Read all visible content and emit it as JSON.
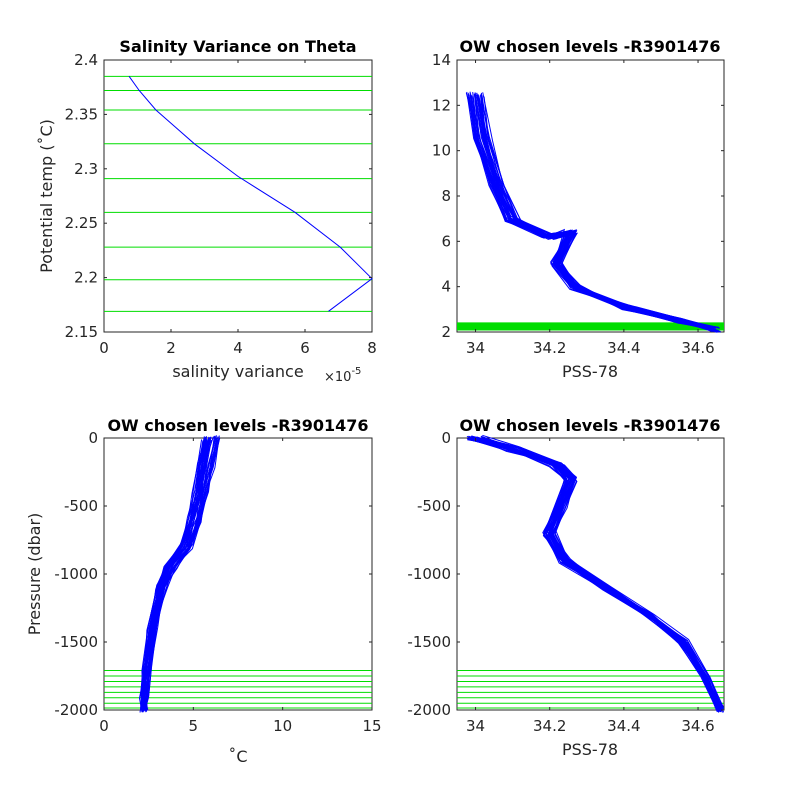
{
  "chart_data": [
    {
      "type": "line",
      "title": "Salinity Variance on Theta",
      "xlabel": "salinity variance",
      "x_exponent_label": "×10",
      "x_exponent_power": "-5",
      "ylabel": "Potential temp (˚C)",
      "xlim": [
        0,
        8
      ],
      "ylim": [
        2.15,
        2.4
      ],
      "xticks": [
        "0",
        "2",
        "4",
        "6",
        "8"
      ],
      "xtick_values": [
        0,
        2,
        4,
        6,
        8
      ],
      "yticks": [
        "2.15",
        "2.2",
        "2.25",
        "2.3",
        "2.35",
        "2.4"
      ],
      "ytick_values": [
        2.15,
        2.2,
        2.25,
        2.3,
        2.35,
        2.4
      ],
      "series": [
        {
          "color": "#0000ff",
          "x": [
            0.75,
            1.05,
            1.55,
            2.7,
            4.0,
            5.7,
            7.05,
            8.0,
            6.7
          ],
          "y": [
            2.385,
            2.372,
            2.354,
            2.323,
            2.293,
            2.26,
            2.228,
            2.199,
            2.169
          ]
        }
      ],
      "hlines": {
        "color": "#00dd00",
        "values": [
          2.385,
          2.372,
          2.354,
          2.323,
          2.291,
          2.26,
          2.228,
          2.198,
          2.169
        ]
      }
    },
    {
      "type": "line",
      "title": "OW chosen levels -R3901476",
      "xlabel": "PSS-78",
      "ylabel": "",
      "xlim": [
        33.95,
        34.67
      ],
      "ylim": [
        2,
        14
      ],
      "xticks": [
        "34",
        "34.2",
        "34.4",
        "34.6"
      ],
      "xtick_values": [
        34,
        34.2,
        34.4,
        34.6
      ],
      "yticks": [
        "2",
        "4",
        "6",
        "8",
        "10",
        "12",
        "14"
      ],
      "ytick_values": [
        2,
        4,
        6,
        8,
        10,
        12,
        14
      ],
      "profile_count": 40,
      "envelope": {
        "color": "#0000ff",
        "x": [
          34.0,
          34.02,
          34.06,
          34.1,
          34.2,
          34.26,
          34.22,
          34.27,
          34.4,
          34.55,
          34.65
        ],
        "y": [
          12.5,
          10.5,
          8.5,
          7.0,
          6.2,
          6.4,
          5.0,
          4.0,
          3.1,
          2.5,
          2.1
        ]
      },
      "hlines": {
        "color": "#00dd00",
        "y_range": [
          2.05,
          2.4
        ]
      }
    },
    {
      "type": "line",
      "title": "OW chosen levels -R3901476",
      "xlabel": "˚C",
      "ylabel": "Pressure (dbar)",
      "xlim": [
        0,
        15
      ],
      "ylim": [
        -2000,
        0
      ],
      "xticks": [
        "0",
        "5",
        "10",
        "15"
      ],
      "xtick_values": [
        0,
        5,
        10,
        15
      ],
      "yticks": [
        "-2000",
        "-1500",
        "-1000",
        "-500",
        "0"
      ],
      "ytick_values": [
        -2000,
        -1500,
        -1000,
        -500,
        0
      ],
      "profile_count": 40,
      "envelope": {
        "color": "#0000ff",
        "x": [
          6.0,
          5.7,
          5.4,
          5.1,
          4.6,
          3.7,
          3.2,
          2.7,
          2.4,
          2.25,
          2.2
        ],
        "y": [
          0,
          -200,
          -400,
          -600,
          -800,
          -950,
          -1100,
          -1400,
          -1700,
          -1900,
          -2000
        ]
      },
      "hlines": {
        "color": "#00dd00",
        "values": [
          -1710,
          -1750,
          -1790,
          -1830,
          -1870,
          -1910,
          -1950,
          -1985
        ]
      }
    },
    {
      "type": "line",
      "title": "OW chosen levels -R3901476",
      "xlabel": "PSS-78",
      "ylabel": "",
      "xlim": [
        33.95,
        34.67
      ],
      "ylim": [
        -2000,
        0
      ],
      "xticks": [
        "34",
        "34.2",
        "34.4",
        "34.6"
      ],
      "xtick_values": [
        34,
        34.2,
        34.4,
        34.6
      ],
      "yticks": [
        "-2000",
        "-1500",
        "-1000",
        "-500",
        "0"
      ],
      "ytick_values": [
        -2000,
        -1500,
        -1000,
        -500,
        0
      ],
      "profile_count": 40,
      "envelope": {
        "color": "#0000ff",
        "x": [
          34.0,
          34.1,
          34.22,
          34.26,
          34.23,
          34.2,
          34.24,
          34.35,
          34.47,
          34.56,
          34.62,
          34.66
        ],
        "y": [
          0,
          -80,
          -200,
          -300,
          -500,
          -700,
          -900,
          -1100,
          -1300,
          -1500,
          -1750,
          -2000
        ]
      },
      "hlines": {
        "color": "#00dd00",
        "values": [
          -1710,
          -1750,
          -1790,
          -1830,
          -1870,
          -1910,
          -1950,
          -1985
        ]
      }
    }
  ]
}
